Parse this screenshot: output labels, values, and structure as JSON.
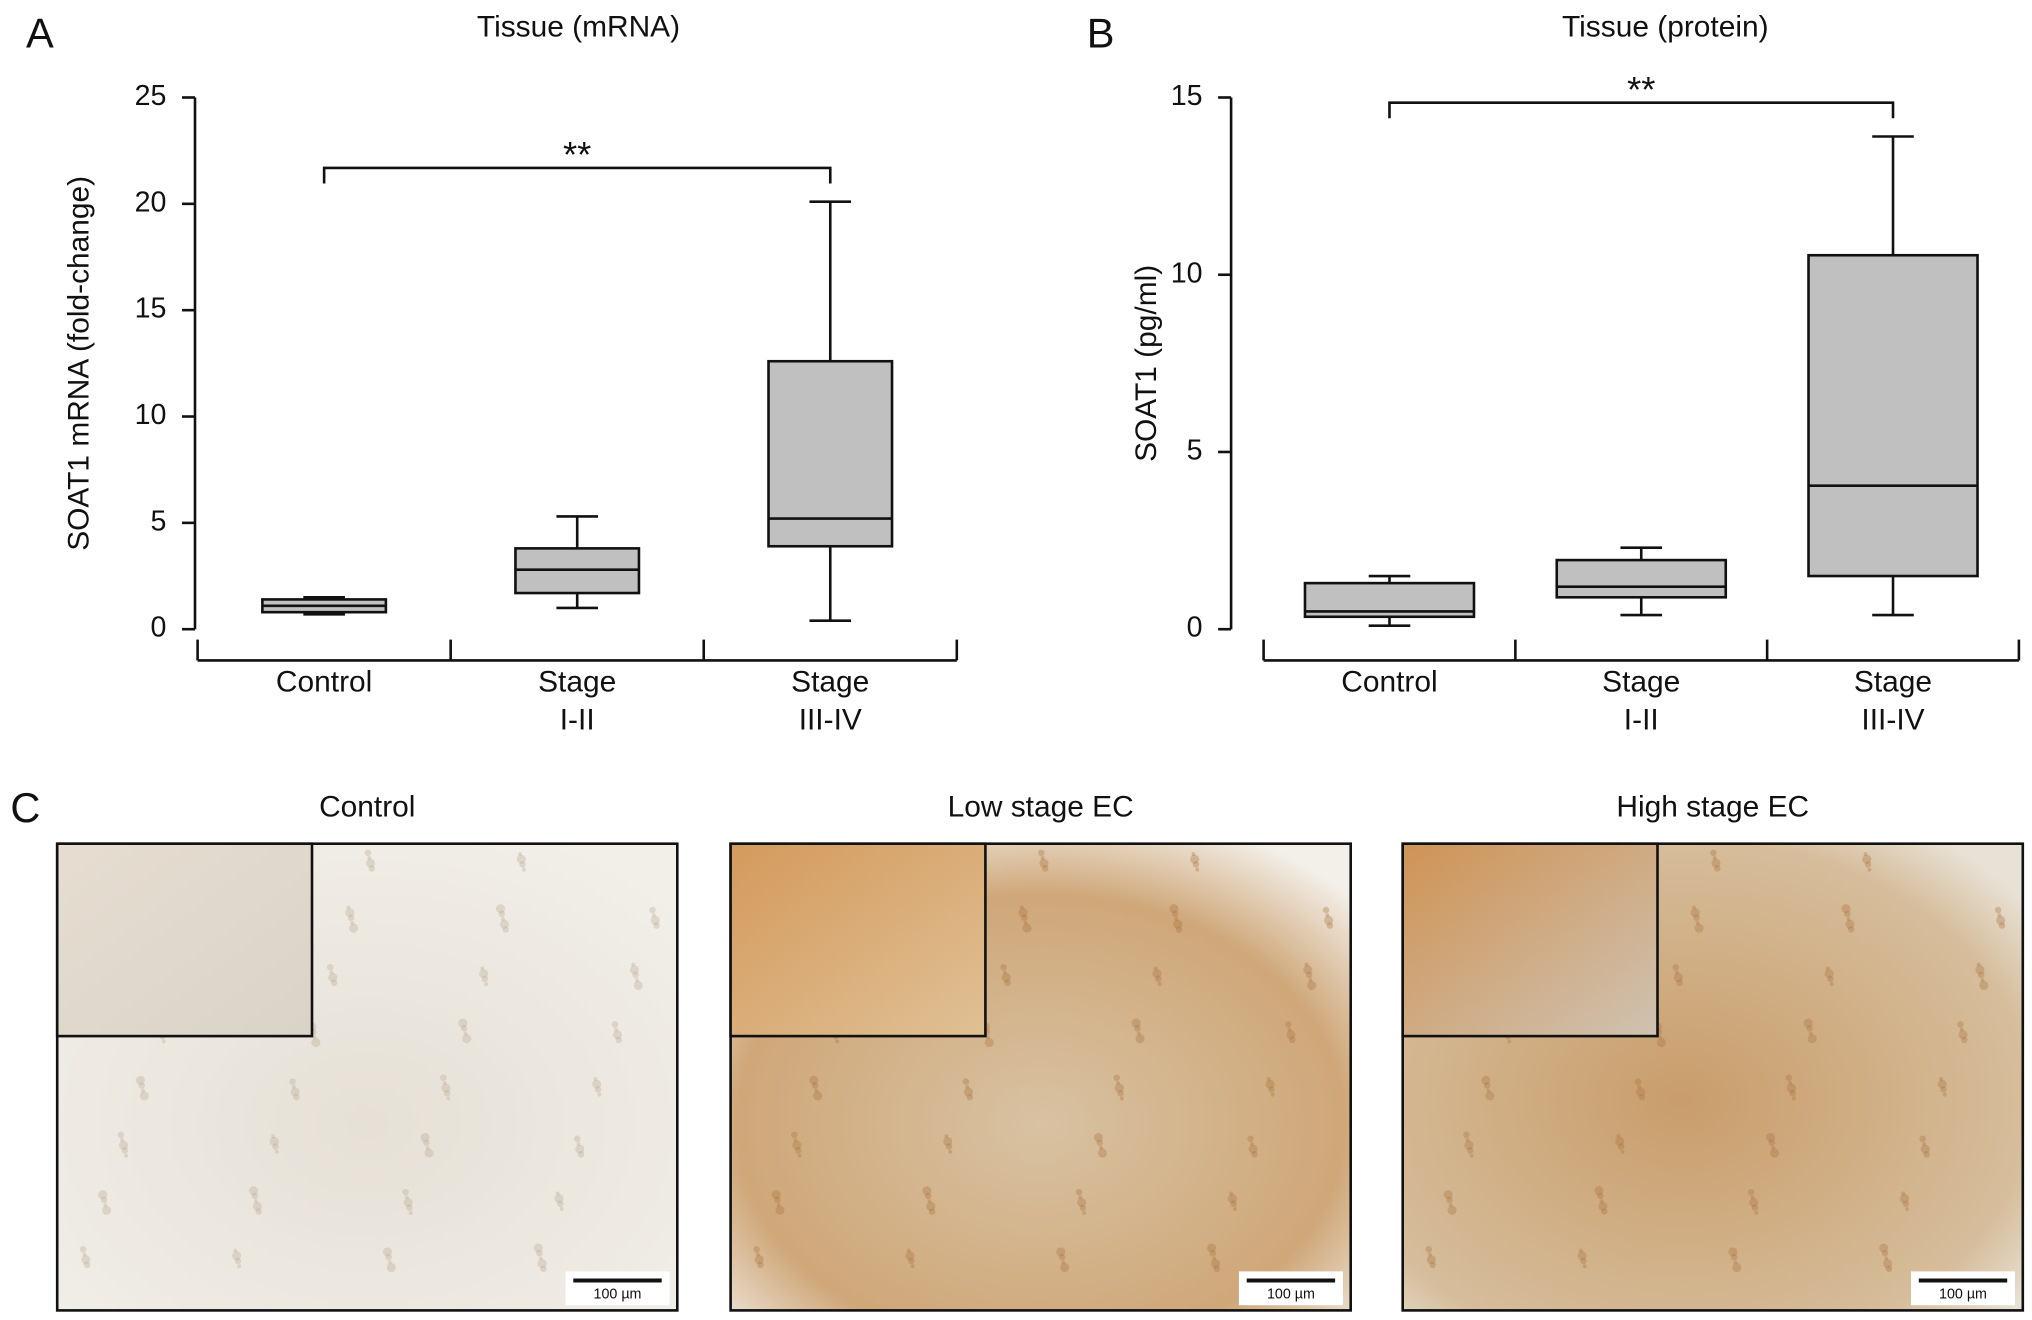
{
  "chart_data": [
    {
      "type": "box",
      "panel": "A",
      "title": "Tissue (mRNA)",
      "ylabel": "SOAT1 mRNA (fold-change)",
      "categories": [
        "Control",
        "Stage\nI-II",
        "Stage\nIII-IV"
      ],
      "boxes": [
        {
          "whislo": 0.7,
          "q1": 0.8,
          "med": 1.1,
          "q3": 1.4,
          "whishi": 1.5
        },
        {
          "whislo": 1.0,
          "q1": 1.7,
          "med": 2.8,
          "q3": 3.8,
          "whishi": 5.3
        },
        {
          "whislo": 0.4,
          "q1": 3.9,
          "med": 5.2,
          "q3": 12.6,
          "whishi": 20.1
        }
      ],
      "color": "#c0c0c0",
      "ylim": [
        0,
        25
      ],
      "yticks": [
        0,
        5,
        10,
        15,
        20,
        25
      ],
      "annotation": "**"
    },
    {
      "type": "box",
      "panel": "B",
      "title": "Tissue (protein)",
      "ylabel": "SOAT1 (pg/ml)",
      "categories": [
        "Control",
        "Stage\nI-II",
        "Stage\nIII-IV"
      ],
      "boxes": [
        {
          "whislo": 0.1,
          "q1": 0.35,
          "med": 0.5,
          "q3": 1.3,
          "whishi": 1.5
        },
        {
          "whislo": 0.4,
          "q1": 0.9,
          "med": 1.2,
          "q3": 1.95,
          "whishi": 2.3
        },
        {
          "whislo": 0.4,
          "q1": 1.5,
          "med": 4.05,
          "q3": 10.55,
          "whishi": 13.9
        }
      ],
      "color": "#c0c0c0",
      "ylim": [
        0,
        15
      ],
      "yticks": [
        0,
        5,
        10,
        15
      ],
      "annotation": "**"
    }
  ],
  "images": {
    "panel": "C",
    "items": [
      {
        "title": "Control",
        "scale_bar": "100 µm"
      },
      {
        "title": "Low stage EC",
        "scale_bar": "100 µm"
      },
      {
        "title": "High stage EC",
        "scale_bar": "100 µm"
      }
    ]
  }
}
